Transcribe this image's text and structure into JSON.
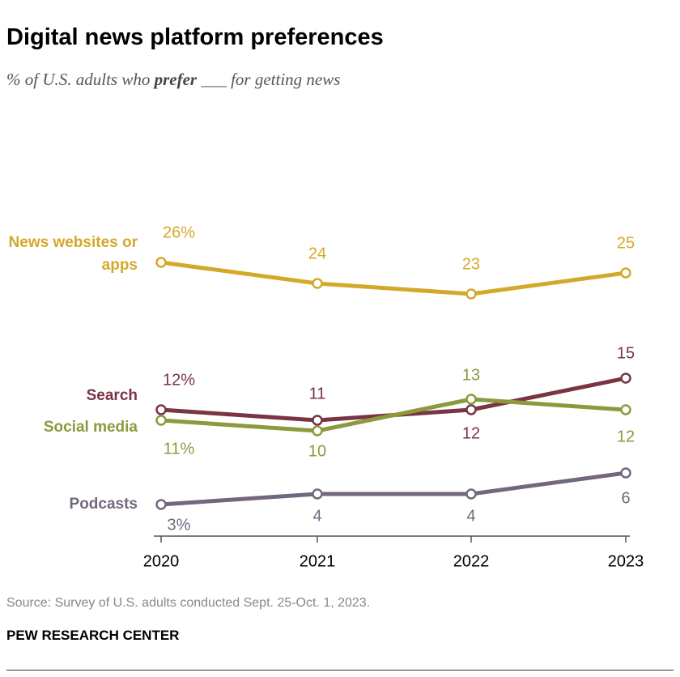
{
  "chart_data": {
    "type": "line",
    "title": "Digital news platform preferences",
    "subtitle": {
      "before": "% of U.S. adults who ",
      "emphasis": "prefer",
      "after": " ___ for getting news"
    },
    "categories": [
      "2020",
      "2021",
      "2022",
      "2023"
    ],
    "ylim": [
      0,
      30
    ],
    "series": [
      {
        "name": "News websites or apps",
        "color": "#d4a82a",
        "values": [
          26,
          24,
          23,
          25
        ],
        "value_labels": [
          "26%",
          "24",
          "23",
          "25"
        ]
      },
      {
        "name": "Search",
        "color": "#7a3443",
        "values": [
          12,
          11,
          12,
          15
        ],
        "value_labels": [
          "12%",
          "11",
          "12",
          "15"
        ]
      },
      {
        "name": "Social media",
        "color": "#8c9a3c",
        "values": [
          11,
          10,
          13,
          12
        ],
        "value_labels": [
          "11%",
          "10",
          "13",
          "12"
        ]
      },
      {
        "name": "Podcasts",
        "color": "#73677e",
        "values": [
          3,
          4,
          4,
          6
        ],
        "value_labels": [
          "3%",
          "4",
          "4",
          "6"
        ]
      }
    ],
    "source": "Source: Survey of U.S. adults conducted Sept. 25-Oct. 1, 2023.",
    "footer": "PEW RESEARCH CENTER"
  }
}
